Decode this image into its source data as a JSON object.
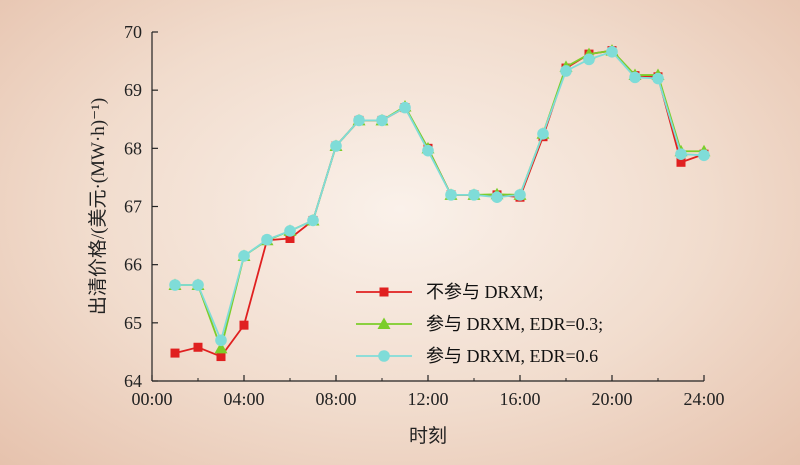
{
  "chart_data": {
    "type": "line",
    "xlabel": "时刻",
    "ylabel": "出清价格/(美元·(MW·h)⁻¹)",
    "xlim": [
      0,
      24
    ],
    "ylim": [
      64,
      70
    ],
    "x_ticks": [
      "00:00",
      "04:00",
      "08:00",
      "12:00",
      "16:00",
      "20:00",
      "24:00"
    ],
    "y_ticks": [
      "64",
      "65",
      "66",
      "67",
      "68",
      "69",
      "70"
    ],
    "grid": false,
    "legend_position": "lower-right",
    "x": [
      1,
      2,
      3,
      4,
      5,
      6,
      7,
      8,
      9,
      10,
      11,
      12,
      13,
      14,
      15,
      16,
      17,
      18,
      19,
      20,
      21,
      22,
      23,
      24
    ],
    "series": [
      {
        "name": "不参与 DRXM;",
        "color": "#e02020",
        "marker": "square",
        "values": [
          64.48,
          64.58,
          64.42,
          64.96,
          66.42,
          66.45,
          66.76,
          68.04,
          68.48,
          68.48,
          68.7,
          68.0,
          67.2,
          67.2,
          67.2,
          67.16,
          68.2,
          69.38,
          69.62,
          69.68,
          69.25,
          69.23,
          67.76,
          67.9
        ]
      },
      {
        "name": "参与 DRXM, EDR=0.3;",
        "color": "#7ccd2a",
        "marker": "triangle",
        "values": [
          65.65,
          65.65,
          64.56,
          66.15,
          66.42,
          66.58,
          66.76,
          68.04,
          68.48,
          68.48,
          68.72,
          68.0,
          67.2,
          67.2,
          67.21,
          67.2,
          68.25,
          69.4,
          69.62,
          69.68,
          69.26,
          69.26,
          67.95,
          67.95
        ]
      },
      {
        "name": "参与 DRXM, EDR=0.6",
        "color": "#7fdcd8",
        "marker": "circle",
        "values": [
          65.65,
          65.65,
          64.7,
          66.15,
          66.43,
          66.58,
          66.76,
          68.04,
          68.48,
          68.48,
          68.7,
          67.96,
          67.2,
          67.2,
          67.16,
          67.2,
          68.25,
          69.33,
          69.53,
          69.66,
          69.22,
          69.2,
          67.9,
          67.88
        ]
      }
    ]
  }
}
